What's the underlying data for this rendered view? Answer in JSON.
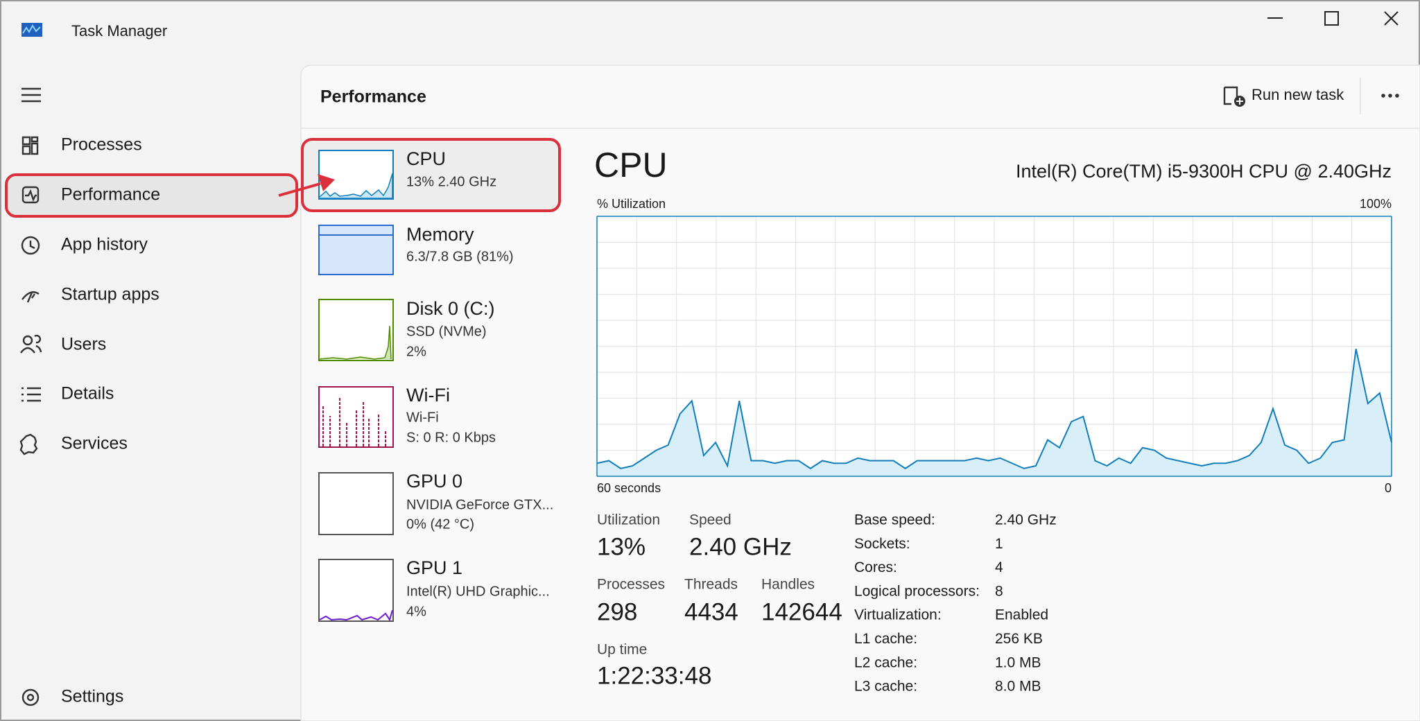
{
  "window": {
    "title": "Task Manager"
  },
  "nav": {
    "items": [
      "Processes",
      "Performance",
      "App history",
      "Startup apps",
      "Users",
      "Details",
      "Services"
    ],
    "settings": "Settings"
  },
  "header": {
    "title": "Performance",
    "run_new_task": "Run new task"
  },
  "devices": [
    {
      "name": "CPU",
      "lines": [
        "13%  2.40 GHz"
      ]
    },
    {
      "name": "Memory",
      "lines": [
        "6.3/7.8 GB (81%)"
      ]
    },
    {
      "name": "Disk 0 (C:)",
      "lines": [
        "SSD (NVMe)",
        "2%"
      ]
    },
    {
      "name": "Wi-Fi",
      "lines": [
        "Wi-Fi",
        "S: 0 R: 0 Kbps"
      ]
    },
    {
      "name": "GPU 0",
      "lines": [
        "NVIDIA GeForce GTX...",
        "0% (42 °C)"
      ]
    },
    {
      "name": "GPU 1",
      "lines": [
        "Intel(R) UHD Graphic...",
        "4%"
      ]
    }
  ],
  "detail": {
    "title": "CPU",
    "model": "Intel(R) Core(TM) i5-9300H CPU @ 2.40GHz",
    "graph": {
      "y_label": "% Utilization",
      "x_label": "60 seconds",
      "ylim": [
        0,
        100
      ],
      "yticks": [
        0,
        {
          "value": 100,
          "label": "100%"
        }
      ],
      "values": [
        5,
        6,
        3,
        4,
        7,
        10,
        12,
        24,
        29,
        8,
        13,
        4,
        29,
        6,
        6,
        5,
        6,
        6,
        3,
        6,
        5,
        5,
        7,
        6,
        6,
        6,
        3,
        6,
        6,
        6,
        6,
        6,
        7,
        6,
        7,
        5,
        3,
        4,
        14,
        11,
        21,
        23,
        6,
        4,
        7,
        5,
        11,
        10,
        7,
        6,
        5,
        4,
        5,
        5,
        6,
        8,
        13,
        26,
        12,
        10,
        5,
        7,
        13,
        14,
        49,
        28,
        32,
        13
      ]
    },
    "stats": [
      {
        "label": "Utilization",
        "value": "13%"
      },
      {
        "label": "Speed",
        "value": "2.40 GHz"
      },
      {
        "label": "Processes",
        "value": 298
      },
      {
        "label": "Threads",
        "value": 4434
      },
      {
        "label": "Handles",
        "value": 142644
      },
      {
        "label": "Up time",
        "value": "1:22:33:48"
      }
    ],
    "specs": [
      [
        "Base speed:",
        "2.40 GHz"
      ],
      [
        "Sockets:",
        1
      ],
      [
        "Cores:",
        4
      ],
      [
        "Logical processors:",
        8
      ],
      [
        "Virtualization:",
        "Enabled"
      ],
      [
        "L1 cache:",
        "256 KB"
      ],
      [
        "L2 cache:",
        "1.0 MB"
      ],
      [
        "L3 cache:",
        "8.0 MB"
      ]
    ]
  }
}
